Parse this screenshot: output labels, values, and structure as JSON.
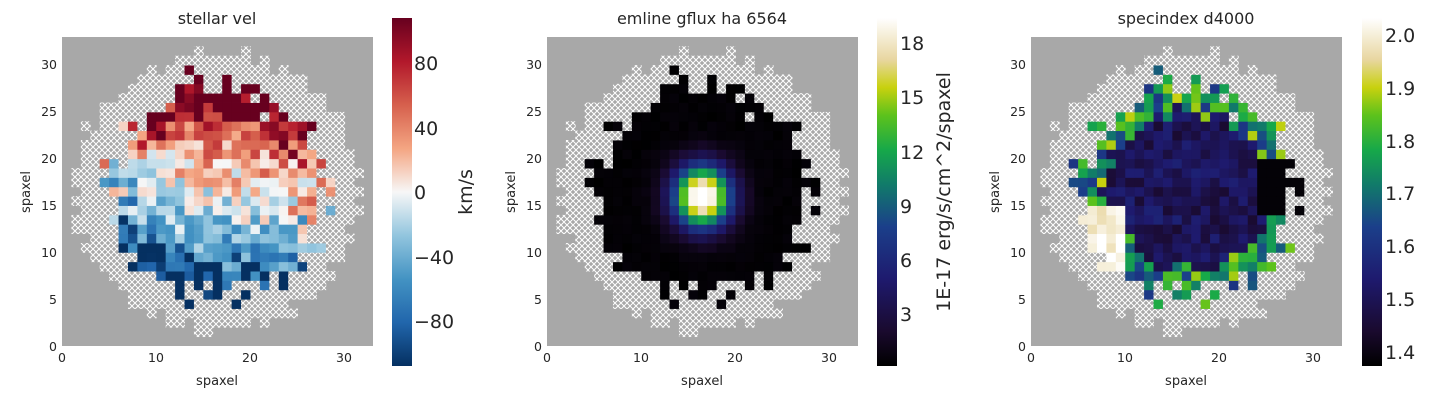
{
  "panels": [
    {
      "title": "stellar vel",
      "xlabel": "spaxel",
      "ylabel": "spaxel",
      "colorbar_label": "km/s",
      "colorbar_ticks": [
        "80",
        "40",
        "0",
        "−40",
        "−80"
      ],
      "colormap": "RdBu_r"
    },
    {
      "title": "emline gflux ha 6564",
      "xlabel": "spaxel",
      "ylabel": "spaxel",
      "colorbar_label": "1E-17 erg/s/cm^2/spaxel",
      "colorbar_ticks": [
        "18",
        "15",
        "12",
        "9",
        "6",
        "3"
      ],
      "colormap": "gist_ncar-like (black-blue-green-yellow-white)"
    },
    {
      "title": "specindex d4000",
      "xlabel": "spaxel",
      "ylabel": "spaxel",
      "colorbar_label": "",
      "colorbar_ticks": [
        "2.0",
        "1.9",
        "1.8",
        "1.7",
        "1.6",
        "1.5",
        "1.4"
      ],
      "colormap": "gist_ncar-like (black-blue-green-yellow-white)"
    }
  ],
  "colors": {
    "background_mask": "#a8a8a8",
    "hatch": "#ffffff"
  },
  "chart_data": [
    {
      "type": "heatmap",
      "title": "stellar vel",
      "xlabel": "spaxel",
      "ylabel": "spaxel",
      "xlim": [
        0,
        33
      ],
      "ylim": [
        0,
        33
      ],
      "xticks": [
        0,
        10,
        20,
        30
      ],
      "yticks": [
        0,
        5,
        10,
        15,
        20,
        25,
        30
      ],
      "colorbar": {
        "label": "km/s",
        "range": [
          -110,
          110
        ],
        "ticks": [
          -80,
          -40,
          0,
          40,
          80
        ]
      },
      "grid_size": [
        33,
        33
      ]
    },
    {
      "type": "heatmap",
      "title": "emline gflux ha 6564",
      "xlabel": "spaxel",
      "ylabel": "spaxel",
      "xlim": [
        0,
        33
      ],
      "ylim": [
        0,
        33
      ],
      "xticks": [
        0,
        10,
        20,
        30
      ],
      "yticks": [
        0,
        5,
        10,
        15,
        20,
        25,
        30
      ],
      "colorbar": {
        "label": "1E-17 erg/s/cm^2/spaxel",
        "range": [
          0,
          20
        ],
        "ticks": [
          3,
          6,
          9,
          12,
          15,
          18
        ]
      },
      "grid_size": [
        33,
        33
      ]
    },
    {
      "type": "heatmap",
      "title": "specindex d4000",
      "xlabel": "spaxel",
      "ylabel": "spaxel",
      "xlim": [
        0,
        33
      ],
      "ylim": [
        0,
        33
      ],
      "xticks": [
        0,
        10,
        20,
        30
      ],
      "yticks": [
        0,
        5,
        10,
        15,
        20,
        25,
        30
      ],
      "colorbar": {
        "label": "",
        "range": [
          1.37,
          2.03
        ],
        "ticks": [
          1.4,
          1.5,
          1.6,
          1.7,
          1.8,
          1.9,
          2.0
        ]
      },
      "grid_size": [
        33,
        33
      ]
    }
  ]
}
